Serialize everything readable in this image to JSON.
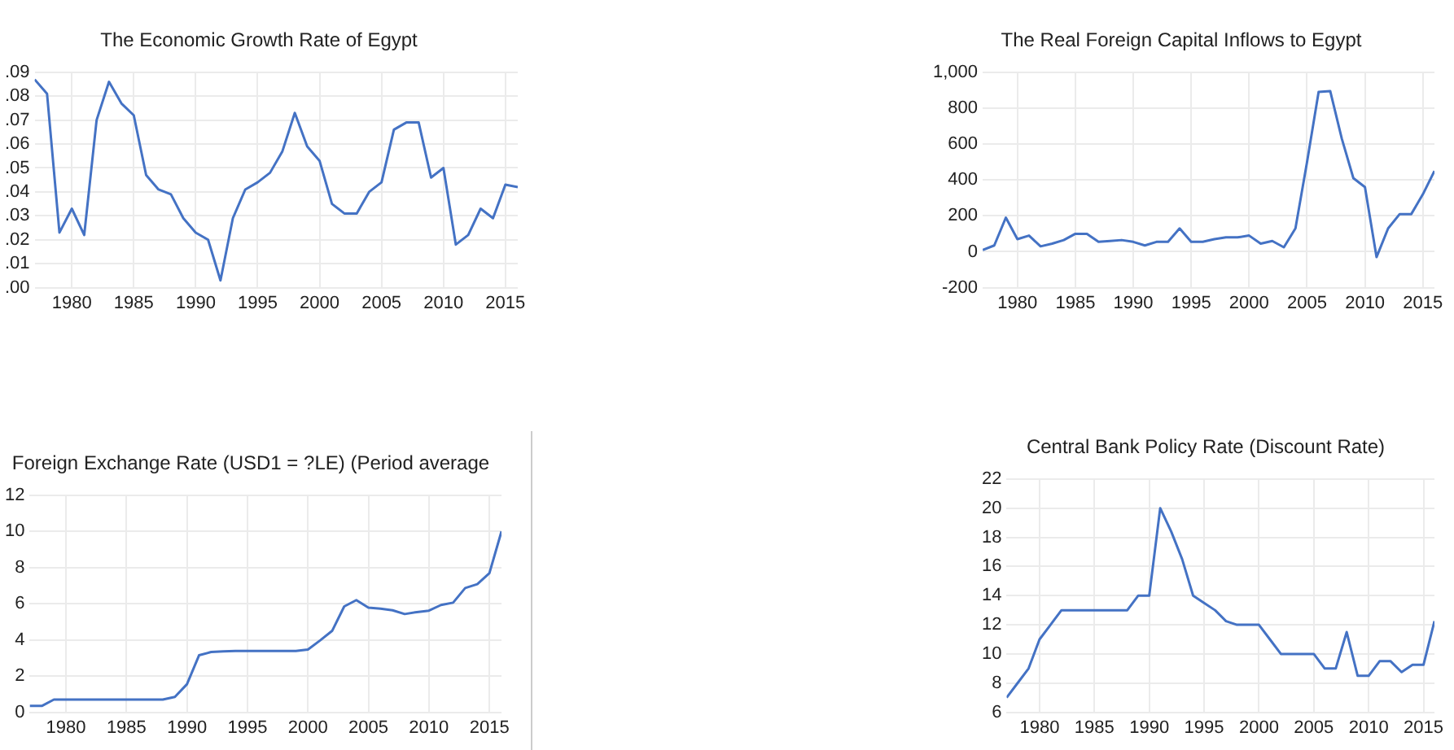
{
  "chart_data": [
    {
      "type": "line",
      "title": "The Economic Growth Rate of Egypt",
      "x": [
        1977,
        1978,
        1979,
        1980,
        1981,
        1982,
        1983,
        1984,
        1985,
        1986,
        1987,
        1988,
        1989,
        1990,
        1991,
        1992,
        1993,
        1994,
        1995,
        1996,
        1997,
        1998,
        1999,
        2000,
        2001,
        2002,
        2003,
        2004,
        2005,
        2006,
        2007,
        2008,
        2009,
        2010,
        2011,
        2012,
        2013,
        2014,
        2015,
        2016
      ],
      "values": [
        0.087,
        0.081,
        0.023,
        0.033,
        0.022,
        0.07,
        0.086,
        0.077,
        0.072,
        0.047,
        0.041,
        0.039,
        0.029,
        0.023,
        0.02,
        0.003,
        0.029,
        0.041,
        0.044,
        0.048,
        0.057,
        0.073,
        0.059,
        0.053,
        0.035,
        0.031,
        0.031,
        0.04,
        0.044,
        0.066,
        0.069,
        0.069,
        0.046,
        0.05,
        0.018,
        0.022,
        0.033,
        0.029,
        0.043,
        0.042
      ],
      "color": "#4472c4",
      "xlim": [
        1977,
        2016
      ],
      "xticks": [
        1980,
        1985,
        1990,
        1995,
        2000,
        2005,
        2010,
        2015
      ],
      "ylim": [
        0,
        0.09
      ],
      "yticks": [
        {
          "value": 0,
          "label": ".00"
        },
        {
          "value": 0.01,
          "label": ".01"
        },
        {
          "value": 0.02,
          "label": ".02"
        },
        {
          "value": 0.03,
          "label": ".03"
        },
        {
          "value": 0.04,
          "label": ".04"
        },
        {
          "value": 0.05,
          "label": ".05"
        },
        {
          "value": 0.06,
          "label": ".06"
        },
        {
          "value": 0.07,
          "label": ".07"
        },
        {
          "value": 0.08,
          "label": ".08"
        },
        {
          "value": 0.09,
          "label": ".09"
        }
      ],
      "grid": true
    },
    {
      "type": "line",
      "title": "The Real Foreign Capital Inflows to Egypt",
      "x": [
        1977,
        1978,
        1979,
        1980,
        1981,
        1982,
        1983,
        1984,
        1985,
        1986,
        1987,
        1988,
        1989,
        1990,
        1991,
        1992,
        1993,
        1994,
        1995,
        1996,
        1997,
        1998,
        1999,
        2000,
        2001,
        2002,
        2003,
        2004,
        2005,
        2006,
        2007,
        2008,
        2009,
        2010,
        2011,
        2012,
        2013,
        2014,
        2015,
        2016
      ],
      "values": [
        10,
        35,
        190,
        70,
        90,
        30,
        45,
        65,
        100,
        100,
        55,
        60,
        65,
        55,
        35,
        55,
        55,
        130,
        55,
        55,
        70,
        80,
        80,
        90,
        45,
        60,
        25,
        130,
        500,
        890,
        895,
        630,
        410,
        360,
        -30,
        130,
        210,
        210,
        320,
        450
      ],
      "color": "#4472c4",
      "xlim": [
        1977,
        2016
      ],
      "xticks": [
        1980,
        1985,
        1990,
        1995,
        2000,
        2005,
        2010,
        2015
      ],
      "ylim": [
        -200,
        1000
      ],
      "yticks": [
        -200,
        0,
        200,
        400,
        600,
        800,
        {
          "value": 1000,
          "label": "1,000"
        }
      ],
      "grid": true
    },
    {
      "type": "line",
      "title": "Foreign Exchange Rate (USD1 = ?LE) (Period average",
      "x": [
        1977,
        1978,
        1979,
        1980,
        1981,
        1982,
        1983,
        1984,
        1985,
        1986,
        1987,
        1988,
        1989,
        1990,
        1991,
        1992,
        1993,
        1994,
        1995,
        1996,
        1997,
        1998,
        1999,
        2000,
        2001,
        2002,
        2003,
        2004,
        2005,
        2006,
        2007,
        2008,
        2009,
        2010,
        2011,
        2012,
        2013,
        2014,
        2015,
        2016
      ],
      "values": [
        0.35,
        0.35,
        0.7,
        0.7,
        0.7,
        0.7,
        0.7,
        0.7,
        0.7,
        0.7,
        0.7,
        0.7,
        0.85,
        1.55,
        3.15,
        3.33,
        3.37,
        3.39,
        3.39,
        3.39,
        3.39,
        3.39,
        3.39,
        3.47,
        3.97,
        4.5,
        5.85,
        6.2,
        5.78,
        5.73,
        5.64,
        5.43,
        5.54,
        5.62,
        5.93,
        6.06,
        6.87,
        7.08,
        7.69,
        10.0
      ],
      "color": "#4472c4",
      "xlim": [
        1977,
        2016
      ],
      "xticks": [
        1980,
        1985,
        1990,
        1995,
        2000,
        2005,
        2010,
        2015
      ],
      "ylim": [
        0,
        12
      ],
      "yticks": [
        0,
        2,
        4,
        6,
        8,
        10,
        12
      ],
      "grid": true
    },
    {
      "type": "line",
      "title": "Central Bank Policy Rate (Discount Rate)",
      "x": [
        1977,
        1978,
        1979,
        1980,
        1981,
        1982,
        1983,
        1984,
        1985,
        1986,
        1987,
        1988,
        1989,
        1990,
        1991,
        1992,
        1993,
        1994,
        1995,
        1996,
        1997,
        1998,
        1999,
        2000,
        2001,
        2002,
        2003,
        2004,
        2005,
        2006,
        2007,
        2008,
        2009,
        2010,
        2011,
        2012,
        2013,
        2014,
        2015,
        2016
      ],
      "values": [
        7,
        8,
        9,
        11,
        12,
        13,
        13,
        13,
        13,
        13,
        13,
        13,
        14,
        14,
        20,
        18.4,
        16.5,
        14,
        13.5,
        13,
        12.25,
        12,
        12,
        12,
        11,
        10,
        10,
        10,
        10,
        9,
        9,
        11.5,
        8.5,
        8.5,
        9.5,
        9.5,
        8.75,
        9.25,
        9.25,
        12.25
      ],
      "color": "#4472c4",
      "xlim": [
        1977,
        2016
      ],
      "xticks": [
        1980,
        1985,
        1990,
        1995,
        2000,
        2005,
        2010,
        2015
      ],
      "ylim": [
        6,
        22
      ],
      "yticks": [
        6,
        8,
        10,
        12,
        14,
        16,
        18,
        20,
        22
      ],
      "grid": true
    }
  ]
}
